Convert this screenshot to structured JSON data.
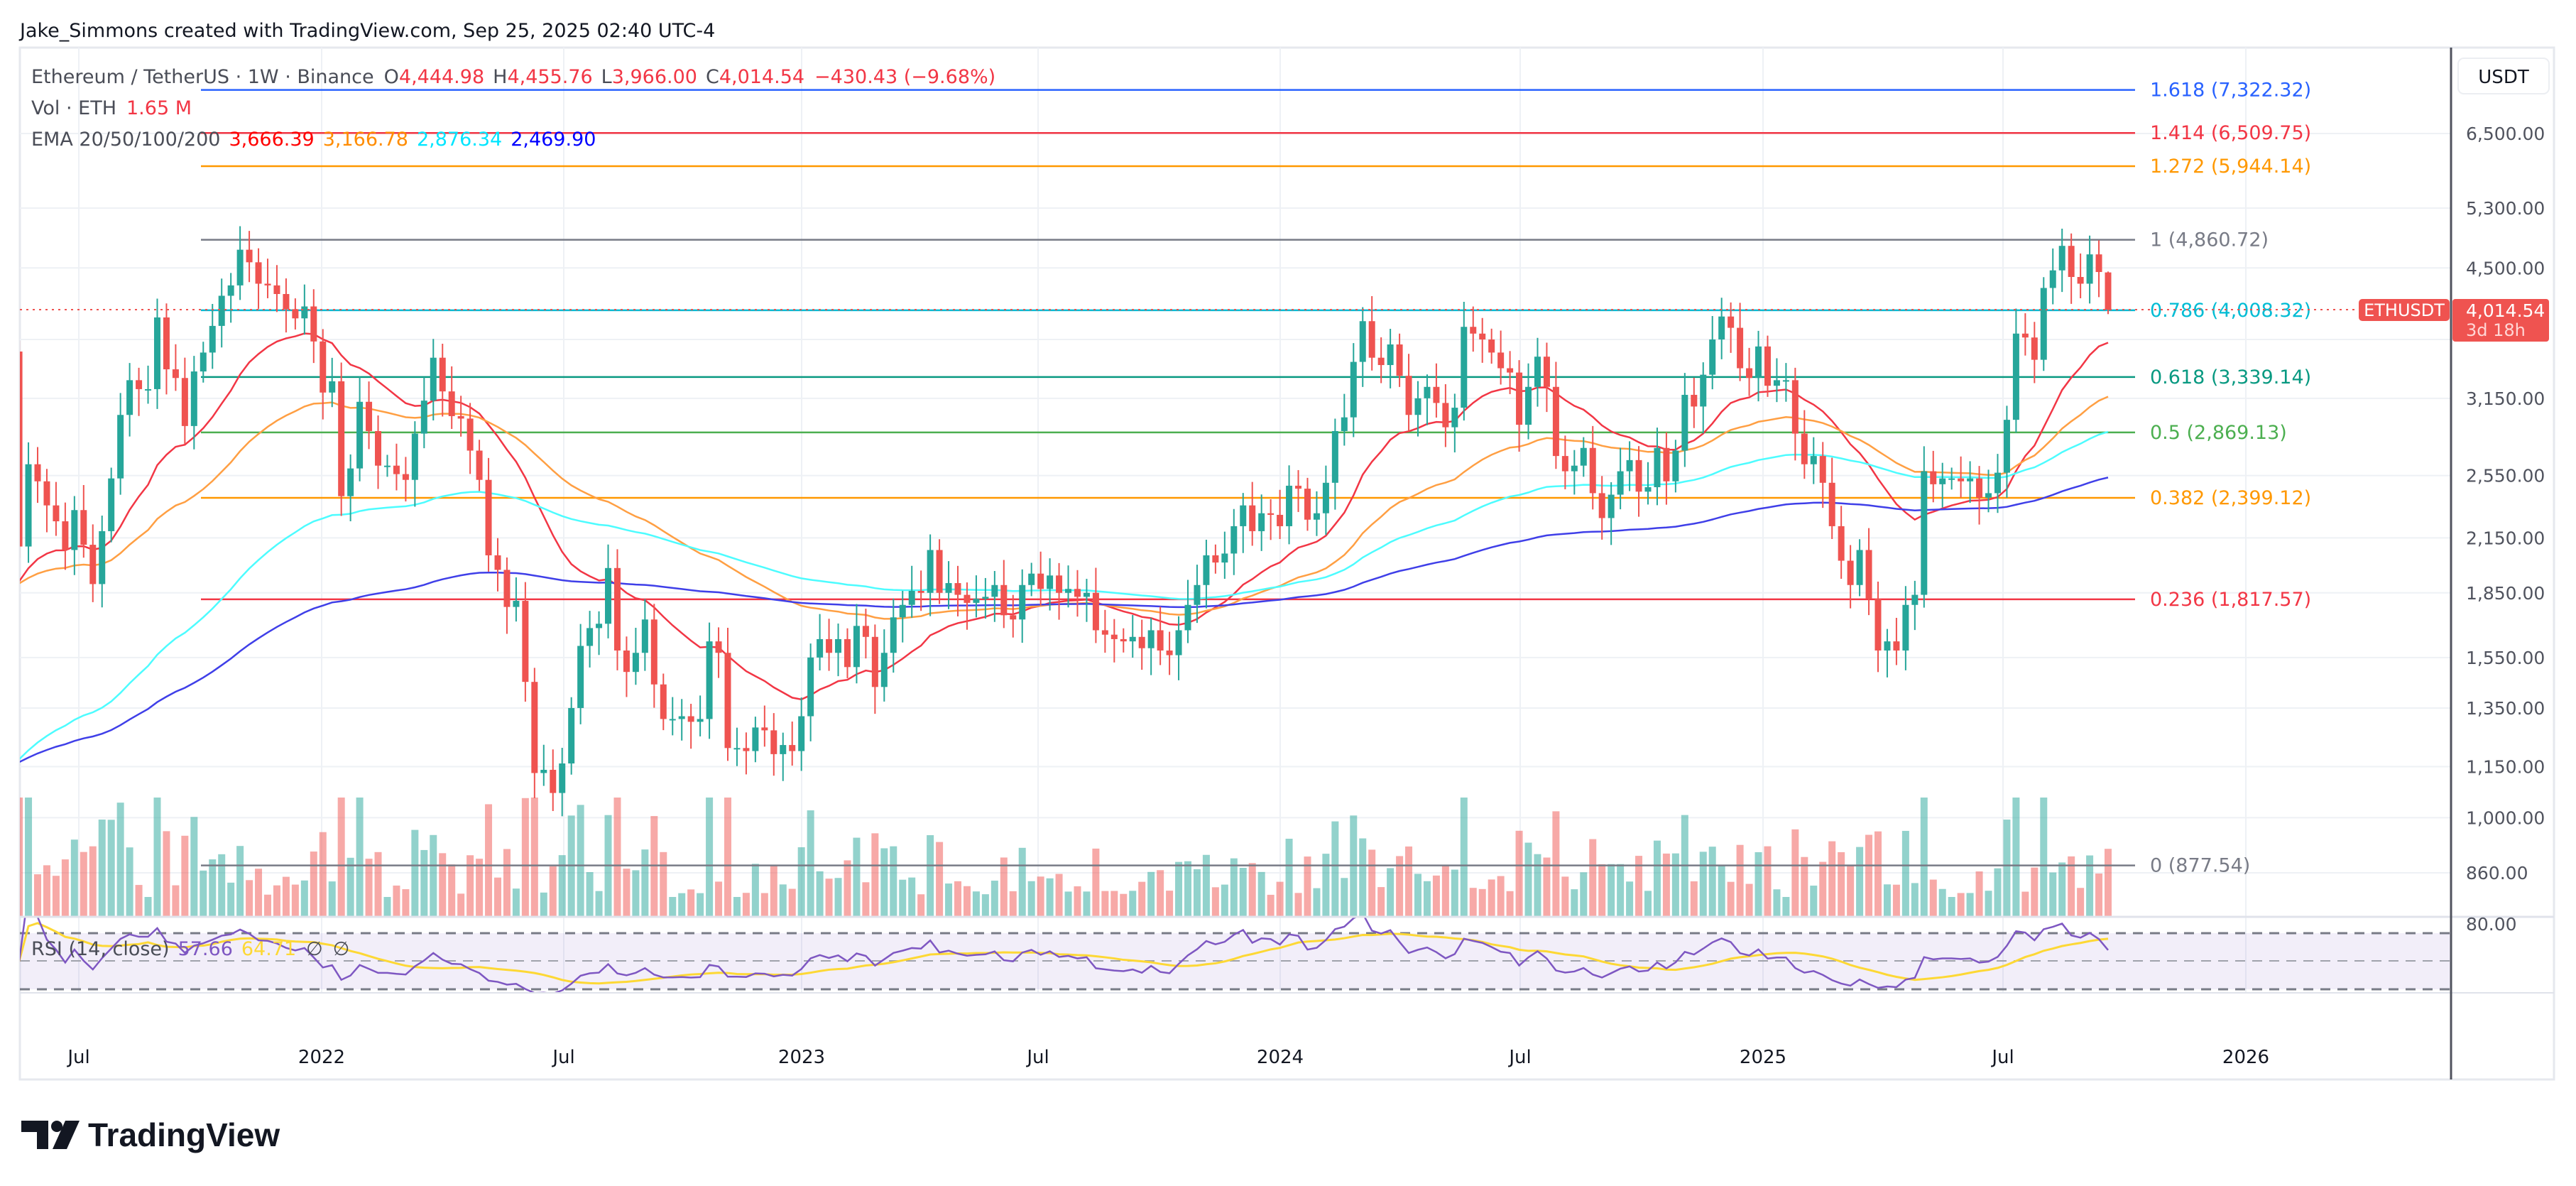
{
  "header": {
    "credit": "Jake_Simmons created with TradingView.com, Sep 25, 2025 02:40 UTC-4"
  },
  "legend": {
    "symbol": "Ethereum / TetherUS · 1W · Binance",
    "o_label": "O",
    "open": "4,444.98",
    "h_label": "H",
    "high": "4,455.76",
    "l_label": "L",
    "low": "3,966.00",
    "c_label": "C",
    "close": "4,014.54",
    "change": "−430.43 (−9.68%)",
    "vol_label": "Vol · ETH",
    "vol_value": "1.65 M",
    "ema_label": "EMA 20/50/100/200",
    "ema_values": [
      "3,666.39",
      "3,166.78",
      "2,876.34",
      "2,469.90"
    ],
    "ema_colors": [
      "#ff0000",
      "#ff8c00",
      "#00e5ff",
      "#0000ff"
    ],
    "rsi_label": "RSI (14, close)",
    "rsi_value": "57.66",
    "rsi_ma_value": "64.71",
    "rsi_na1": "∅",
    "rsi_na2": "∅"
  },
  "price_axis": {
    "currency_button": "USDT",
    "ticks": [
      "6,500.00",
      "5,300.00",
      "4,500.00",
      "3,150.00",
      "2,550.00",
      "2,150.00",
      "1,850.00",
      "1,550.00",
      "1,350.00",
      "1,150.00",
      "1,000.00",
      "860.00"
    ],
    "rsi_tick": "80.00",
    "last_price_tag": {
      "symbol": "ETHUSDT",
      "price": "4,014.54",
      "countdown": "3d 18h"
    }
  },
  "time_axis": {
    "labels": [
      "Jul",
      "2022",
      "Jul",
      "2023",
      "Jul",
      "2024",
      "Jul",
      "2025",
      "Jul",
      "2026"
    ]
  },
  "fib_levels": [
    {
      "label": "1.618 (7,322.32)",
      "price": 7322.32,
      "color": "#2962ff"
    },
    {
      "label": "1.414 (6,509.75)",
      "price": 6509.75,
      "color": "#f23645"
    },
    {
      "label": "1.272 (5,944.14)",
      "price": 5944.14,
      "color": "#ff9800"
    },
    {
      "label": "1 (4,860.72)",
      "price": 4860.72,
      "color": "#787b86"
    },
    {
      "label": "0.786 (4,008.32)",
      "price": 4008.32,
      "color": "#00bcd4"
    },
    {
      "label": "0.618 (3,339.14)",
      "price": 3339.14,
      "color": "#089981"
    },
    {
      "label": "0.5 (2,869.13)",
      "price": 2869.13,
      "color": "#4caf50"
    },
    {
      "label": "0.382 (2,399.12)",
      "price": 2399.12,
      "color": "#ff9800"
    },
    {
      "label": "0.236 (1,817.57)",
      "price": 1817.57,
      "color": "#f23645"
    },
    {
      "label": "0 (877.54)",
      "price": 877.54,
      "color": "#787b86"
    }
  ],
  "colors": {
    "up": "#26a69a",
    "down": "#ef5350",
    "ema20": "#f23645",
    "ema50": "#ff9f43",
    "ema100": "#4dfcff",
    "ema200": "#3f3fe8",
    "rsi": "#7e57c2",
    "rsi_ma": "#fdd835"
  },
  "logo": {
    "text": "TradingView"
  },
  "chart_data": {
    "type": "candlestick",
    "interval": "1W",
    "scale": "log",
    "ylim": [
      800,
      7600
    ],
    "first_open": 3580,
    "last_candle": {
      "open": 4444.98,
      "high": 4455.76,
      "low": 3966.0,
      "close": 4014.54
    },
    "closes": [
      2100,
      2630,
      2510,
      2350,
      2250,
      2080,
      2320,
      2110,
      1895,
      2190,
      2530,
      3010,
      3310,
      3230,
      3230,
      3930,
      3410,
      3330,
      2920,
      3390,
      3570,
      3840,
      4170,
      4290,
      4730,
      4570,
      4310,
      4290,
      4190,
      4020,
      3920,
      4050,
      3680,
      3200,
      3300,
      2410,
      2600,
      3120,
      2880,
      2620,
      2620,
      2560,
      2520,
      2860,
      3130,
      3520,
      3210,
      3000,
      2980,
      2730,
      2520,
      2050,
      1970,
      1780,
      1810,
      1450,
      1130,
      1140,
      1070,
      1160,
      1350,
      1600,
      1680,
      1700,
      1980,
      1580,
      1490,
      1570,
      1720,
      1440,
      1310,
      1310,
      1320,
      1300,
      1310,
      1620,
      1570,
      1210,
      1210,
      1200,
      1280,
      1270,
      1190,
      1220,
      1200,
      1320,
      1550,
      1630,
      1570,
      1630,
      1510,
      1690,
      1640,
      1430,
      1570,
      1730,
      1790,
      1860,
      1850,
      2080,
      1850,
      1900,
      1840,
      1800,
      1820,
      1830,
      1890,
      1740,
      1720,
      1890,
      1950,
      1870,
      1940,
      1850,
      1870,
      1830,
      1850,
      1670,
      1650,
      1630,
      1620,
      1640,
      1590,
      1670,
      1580,
      1560,
      1670,
      1790,
      1890,
      2050,
      2010,
      2060,
      2220,
      2350,
      2190,
      2300,
      2290,
      2220,
      2480,
      2460,
      2260,
      2300,
      2500,
      2880,
      2990,
      3480,
      3890,
      3520,
      3450,
      3650,
      3350,
      3010,
      3150,
      3250,
      3110,
      2910,
      3070,
      3830,
      3760,
      3700,
      3570,
      3420,
      3380,
      2930,
      3250,
      3530,
      3250,
      2690,
      2580,
      2620,
      2750,
      2430,
      2270,
      2420,
      2580,
      2660,
      2440,
      2470,
      2750,
      2510,
      2730,
      3180,
      3080,
      3360,
      3700,
      3940,
      3820,
      3420,
      3330,
      3630,
      3260,
      3310,
      3310,
      2860,
      2630,
      2690,
      2500,
      2220,
      2020,
      1890,
      2080,
      1820,
      1580,
      1620,
      1580,
      1790,
      1840,
      2580,
      2490,
      2530,
      2530,
      2510,
      2530,
      2400,
      2430,
      2570,
      2970,
      3760,
      3720,
      3500,
      4260,
      4470,
      4780,
      4390,
      4310,
      4670,
      4450,
      4014.54
    ],
    "indicators": [
      "EMA 20",
      "EMA 50",
      "EMA 100",
      "EMA 200",
      "Volume",
      "RSI 14 with MA"
    ],
    "rsi_bands": [
      70,
      50,
      30
    ]
  }
}
